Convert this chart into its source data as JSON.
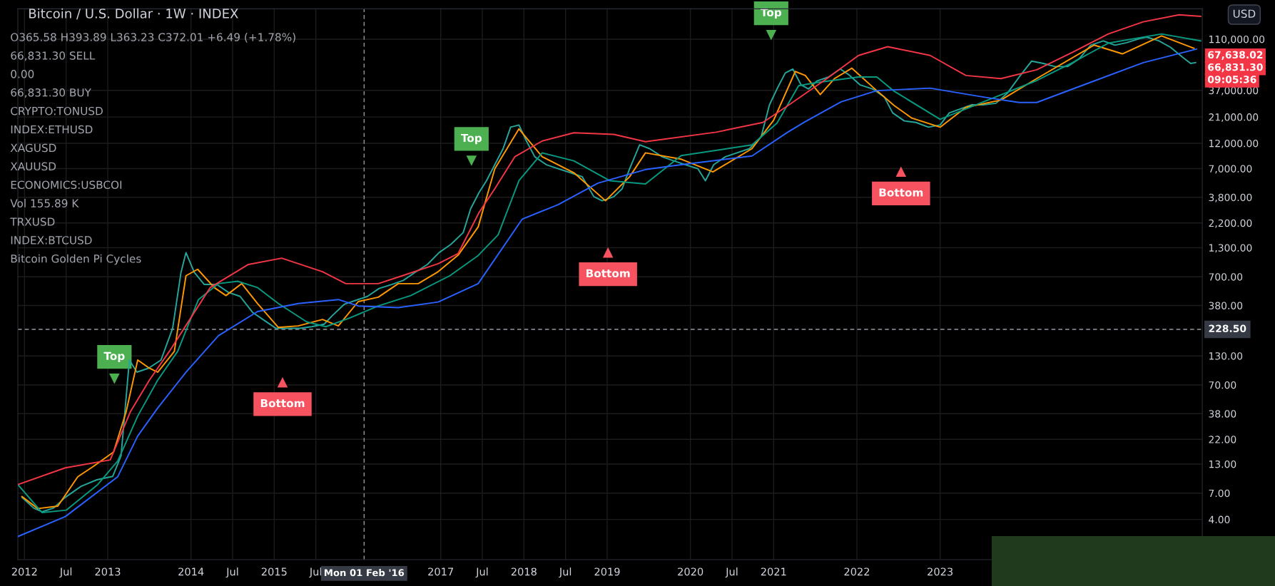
{
  "chart_data": {
    "type": "line",
    "title": "Bitcoin / U.S. Dollar · 1W · INDEX",
    "annotations": [
      "O365.58 H393.89 L363.23 C372.01 +6.49 (+1.78%)",
      "66,831.30 SELL",
      "0.00",
      "66,831.30 BUY",
      "CRYPTO:TONUSD",
      "INDEX:ETHUSD",
      "XAGUSD",
      "XAUUSD",
      "ECONOMICS:USBCOI",
      "Vol 155.89 K",
      "TRXUSD",
      "INDEX:BTCUSD",
      "Bitcoin Golden Pi Cycles",
      "USD",
      "67,638.02",
      "66,831.30",
      "09:05:36"
    ],
    "xlim": [
      2011.92,
      2026.15
    ],
    "xticks": [
      {
        "value": 2012,
        "label": "2012"
      },
      {
        "value": 2012.5,
        "label": "Jul"
      },
      {
        "value": 2013,
        "label": "2013"
      },
      {
        "value": 2014,
        "label": "2014"
      },
      {
        "value": 2014.5,
        "label": "Jul"
      },
      {
        "value": 2015,
        "label": "2015"
      },
      {
        "value": 2015.5,
        "label": "Jul"
      },
      {
        "value": 2017,
        "label": "2017"
      },
      {
        "value": 2017.5,
        "label": "Jul"
      },
      {
        "value": 2018,
        "label": "2018"
      },
      {
        "value": 2018.5,
        "label": "Jul"
      },
      {
        "value": 2019,
        "label": "2019"
      },
      {
        "value": 2020,
        "label": "2020"
      },
      {
        "value": 2020.5,
        "label": "Jul"
      },
      {
        "value": 2021,
        "label": "2021"
      },
      {
        "value": 2022,
        "label": "2022"
      },
      {
        "value": 2023,
        "label": "2023"
      }
    ],
    "ylim": [
      1.7,
      210000
    ],
    "log": true,
    "yticks": [
      {
        "value": 4,
        "label": "4.00"
      },
      {
        "value": 7,
        "label": "7.00"
      },
      {
        "value": 13,
        "label": "13.00"
      },
      {
        "value": 22,
        "label": "22.00"
      },
      {
        "value": 38,
        "label": "38.00"
      },
      {
        "value": 70,
        "label": "70.00"
      },
      {
        "value": 130,
        "label": "130.00"
      },
      {
        "value": 380,
        "label": "380.00"
      },
      {
        "value": 700,
        "label": "700.00"
      },
      {
        "value": 1300,
        "label": "1,300.00"
      },
      {
        "value": 2200,
        "label": "2,200.00"
      },
      {
        "value": 3800,
        "label": "3,800.00"
      },
      {
        "value": 7000,
        "label": "7,000.00"
      },
      {
        "value": 12000,
        "label": "12,000.00"
      },
      {
        "value": 21000,
        "label": "21,000.00"
      },
      {
        "value": 37000,
        "label": "37,000.00"
      },
      {
        "value": 110000,
        "label": "110,000.00"
      }
    ],
    "grid": true,
    "ref_lines": [
      {
        "axis": "x",
        "value": 2016.08,
        "label": "Mon 01 Feb '16",
        "line_style": "dashed",
        "color": "#9598a1"
      },
      {
        "axis": "y",
        "value": 228.5,
        "label": "228.50",
        "line_style": "dashed",
        "color": "#9598a1"
      }
    ],
    "series": [
      {
        "type": "line",
        "color": "#26a69a",
        "x": [
          2011.97,
          2012.11,
          2012.21,
          2012.35,
          2012.49,
          2012.68,
          2012.87,
          2013.06,
          2013.16,
          2013.26,
          2013.35,
          2013.49,
          2013.64,
          2013.78,
          2013.88,
          2013.94,
          2014.04,
          2014.16,
          2014.31,
          2014.45,
          2014.59,
          2014.74,
          2014.88,
          2015.02,
          2015.17,
          2015.31,
          2015.45,
          2015.6,
          2015.69,
          2015.84,
          2015.98,
          2016.12,
          2016.26,
          2016.41,
          2016.55,
          2016.69,
          2016.84,
          2016.98,
          2017.12,
          2017.27,
          2017.36,
          2017.46,
          2017.55,
          2017.65,
          2017.75,
          2017.84,
          2017.94,
          2018.03,
          2018.13,
          2018.27,
          2018.41,
          2018.56,
          2018.7,
          2018.84,
          2018.94,
          2019.08,
          2019.18,
          2019.27,
          2019.39,
          2019.51,
          2019.66,
          2019.8,
          2019.94,
          2020.09,
          2020.18,
          2020.28,
          2020.42,
          2020.56,
          2020.71,
          2020.85,
          2020.95,
          2021.04,
          2021.14,
          2021.23,
          2021.33,
          2021.42,
          2021.52,
          2021.66,
          2021.8,
          2021.9,
          2022.04,
          2022.19,
          2022.33,
          2022.43,
          2022.57,
          2022.71,
          2022.86,
          2023.0,
          2023.11,
          2023.24,
          2023.38,
          2023.52,
          2023.67,
          2023.81,
          2023.95,
          2024.1,
          2024.24,
          2024.38,
          2024.53,
          2024.67,
          2024.81,
          2024.96,
          2025.1,
          2025.24,
          2025.39,
          2025.48,
          2025.63,
          2025.77,
          2025.91,
          2026.01,
          2026.07
        ],
        "values": [
          6.4,
          5.1,
          4.7,
          5.1,
          6.4,
          8.1,
          9.3,
          10,
          15.5,
          119,
          92,
          100,
          119,
          234,
          767,
          1170,
          767,
          594,
          594,
          502,
          461,
          328,
          277,
          234,
          234,
          234,
          242,
          255,
          302,
          389,
          424,
          461,
          546,
          594,
          647,
          767,
          910,
          1170,
          1390,
          1790,
          2980,
          4190,
          5410,
          7600,
          10700,
          16900,
          17700,
          12600,
          9000,
          7600,
          6980,
          6410,
          5890,
          3850,
          3530,
          3850,
          4560,
          6980,
          11600,
          10700,
          9000,
          8260,
          7600,
          6980,
          5410,
          7600,
          9000,
          9790,
          10700,
          13800,
          27200,
          38100,
          53600,
          58300,
          41500,
          38100,
          45200,
          49200,
          58300,
          51800,
          41500,
          38100,
          32100,
          22900,
          19300,
          18700,
          16900,
          17700,
          22900,
          24900,
          27200,
          27200,
          28100,
          35000,
          49200,
          69000,
          65600,
          61400,
          61400,
          72600,
          96800,
          106000,
          96800,
          102000,
          111000,
          115000,
          106000,
          92300,
          75200,
          65600,
          66800
        ]
      },
      {
        "type": "line",
        "color": "#ff9800",
        "x": [
          2011.97,
          2012.16,
          2012.4,
          2012.64,
          2012.83,
          2013.07,
          2013.22,
          2013.36,
          2013.5,
          2013.6,
          2013.8,
          2013.94,
          2014.08,
          2014.28,
          2014.42,
          2014.61,
          2014.8,
          2015.05,
          2015.29,
          2015.58,
          2015.77,
          2016.01,
          2016.25,
          2016.49,
          2016.73,
          2016.97,
          2017.21,
          2017.45,
          2017.65,
          2017.94,
          2018.22,
          2018.6,
          2018.98,
          2019.27,
          2019.46,
          2019.89,
          2020.27,
          2020.74,
          2021.0,
          2021.26,
          2021.38,
          2021.56,
          2021.73,
          2021.94,
          2022.2,
          2022.45,
          2022.66,
          2023.0,
          2023.31,
          2023.73,
          2024.16,
          2024.85,
          2025.19,
          2025.66,
          2026.05
        ],
        "values": [
          6.5,
          5.04,
          5.3,
          9.93,
          12.4,
          16.8,
          39.3,
          119,
          100,
          91.8,
          143,
          716,
          821,
          556,
          469,
          605,
          396,
          238,
          246,
          282,
          246,
          413,
          453,
          605,
          605,
          780,
          1110,
          2020,
          6980,
          16300,
          9000,
          6410,
          3530,
          5890,
          9790,
          8550,
          6520,
          10700,
          19600,
          55300,
          50800,
          33800,
          47500,
          59300,
          39100,
          26700,
          20500,
          16900,
          25800,
          30100,
          47500,
          97000,
          80500,
          118000,
          90600
        ]
      },
      {
        "type": "line",
        "color": "#089981",
        "x": [
          2011.92,
          2012.21,
          2012.5,
          2012.88,
          2013.12,
          2013.36,
          2013.6,
          2013.84,
          2014.09,
          2014.33,
          2014.56,
          2014.8,
          2015.05,
          2015.39,
          2015.62,
          2015.91,
          2016.25,
          2016.64,
          2017.11,
          2017.45,
          2017.69,
          2017.94,
          2018.22,
          2018.6,
          2019.03,
          2019.46,
          2019.89,
          2020.74,
          2021.04,
          2021.3,
          2021.52,
          2022.02,
          2022.24,
          2022.45,
          2023.0,
          2023.52,
          2024.16,
          2024.59,
          2025.02,
          2025.66,
          2026.13
        ],
        "values": [
          8.4,
          4.63,
          4.87,
          8.4,
          13.9,
          36.1,
          77.5,
          143,
          431,
          605,
          637,
          556,
          396,
          268,
          242,
          292,
          376,
          469,
          716,
          1100,
          1710,
          5410,
          9790,
          8260,
          5410,
          5050,
          9230,
          11600,
          18400,
          40800,
          43700,
          49200,
          49200,
          36200,
          20000,
          29000,
          45600,
          66800,
          101000,
          123000,
          106000
        ]
      },
      {
        "type": "line",
        "color": "#f23645",
        "x": [
          2011.92,
          2012.49,
          2013.03,
          2013.27,
          2013.5,
          2013.74,
          2014.23,
          2014.69,
          2015.09,
          2015.58,
          2015.86,
          2016.25,
          2016.54,
          2016.97,
          2017.21,
          2017.46,
          2017.65,
          2017.89,
          2018.22,
          2018.6,
          2019.08,
          2019.46,
          2020.31,
          2020.87,
          2021.17,
          2021.6,
          2022.02,
          2022.37,
          2022.88,
          2023.31,
          2023.73,
          2024.16,
          2024.59,
          2025.02,
          2025.44,
          2025.87,
          2026.13
        ],
        "values": [
          8.4,
          12.0,
          14.2,
          39.3,
          77.5,
          143,
          556,
          910,
          1040,
          780,
          605,
          605,
          716,
          925,
          1150,
          2740,
          4560,
          9000,
          12600,
          15000,
          14500,
          12400,
          15200,
          18700,
          26700,
          45200,
          77800,
          93800,
          77800,
          50800,
          47500,
          57300,
          83200,
          123000,
          159000,
          185000,
          179000
        ]
      },
      {
        "type": "line",
        "color": "#2962ff",
        "x": [
          2011.92,
          2012.49,
          2013.12,
          2013.36,
          2013.6,
          2013.94,
          2014.33,
          2014.8,
          2015.29,
          2015.77,
          2016.01,
          2016.49,
          2016.97,
          2017.45,
          2017.98,
          2018.41,
          2018.89,
          2019.46,
          2019.89,
          2020.74,
          2021.17,
          2021.38,
          2021.81,
          2022.24,
          2022.88,
          2023.52,
          2023.95,
          2024.16,
          2024.8,
          2025.44,
          2026.08
        ],
        "values": [
          2.78,
          4.25,
          9.93,
          23.6,
          42.8,
          91.8,
          200,
          334,
          396,
          431,
          376,
          363,
          409,
          605,
          2390,
          3250,
          5140,
          6860,
          7600,
          9160,
          15200,
          19000,
          29000,
          36800,
          38800,
          32100,
          28600,
          28600,
          43700,
          66800,
          89100
        ]
      },
      {
        "type": "scatter",
        "name": "Top",
        "color": "#4caf50",
        "x": [
          2013.08,
          2017.37,
          2020.97
        ],
        "values": [
          80,
          8280,
          120000
        ]
      },
      {
        "type": "scatter",
        "name": "Bottom",
        "color": "#f7525f",
        "x": [
          2015.1,
          2019.01,
          2022.53
        ],
        "values": [
          74,
          1175,
          6560
        ]
      }
    ]
  }
}
